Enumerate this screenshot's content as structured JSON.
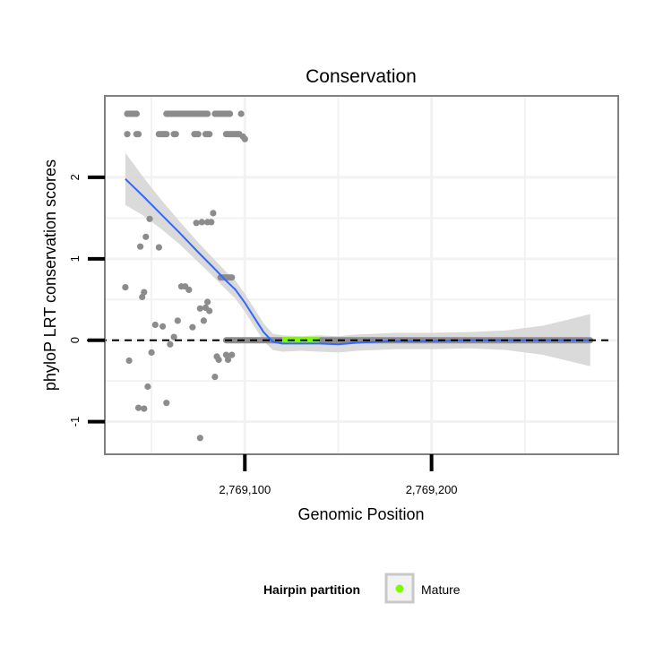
{
  "chart_data": {
    "type": "scatter",
    "title": "Conservation",
    "xlabel": "Genomic Position",
    "ylabel": "phyloP LRT conservation scores",
    "xlim": [
      2769025,
      2769300
    ],
    "ylim": [
      -1.4,
      3.0
    ],
    "x_ticks": [
      {
        "value": 2769100,
        "label": "2,769,100"
      },
      {
        "value": 2769200,
        "label": "2,769,200"
      }
    ],
    "y_ticks": [
      {
        "value": -1,
        "label": "-1"
      },
      {
        "value": 0,
        "label": "0"
      },
      {
        "value": 1,
        "label": "1"
      },
      {
        "value": 2,
        "label": "2"
      }
    ],
    "x_minor_grid": [
      2769050,
      2769150,
      2769250
    ],
    "reference_line": {
      "y": 0,
      "style": "dashed"
    },
    "colors": {
      "point": "#8c8c8c",
      "smooth": "#3366ff",
      "ribbon": "#d6d6d6",
      "mature": "#7cfc00",
      "panel_border": "#7f7f7f",
      "grid": "#f2f2f2"
    },
    "series": [
      {
        "name": "Scores",
        "points": [
          [
            2769037,
            2.78
          ],
          [
            2769038,
            2.78
          ],
          [
            2769039,
            2.78
          ],
          [
            2769040,
            2.78
          ],
          [
            2769041,
            2.78
          ],
          [
            2769042,
            2.78
          ],
          [
            2769037,
            2.53
          ],
          [
            2769042,
            2.53
          ],
          [
            2769043,
            2.53
          ],
          [
            2769058,
            2.78
          ],
          [
            2769059,
            2.78
          ],
          [
            2769060,
            2.78
          ],
          [
            2769061,
            2.78
          ],
          [
            2769062,
            2.78
          ],
          [
            2769063,
            2.78
          ],
          [
            2769064,
            2.78
          ],
          [
            2769065,
            2.78
          ],
          [
            2769066,
            2.78
          ],
          [
            2769067,
            2.78
          ],
          [
            2769068,
            2.78
          ],
          [
            2769069,
            2.78
          ],
          [
            2769070,
            2.78
          ],
          [
            2769071,
            2.78
          ],
          [
            2769072,
            2.78
          ],
          [
            2769073,
            2.78
          ],
          [
            2769074,
            2.78
          ],
          [
            2769075,
            2.78
          ],
          [
            2769076,
            2.78
          ],
          [
            2769077,
            2.78
          ],
          [
            2769078,
            2.78
          ],
          [
            2769079,
            2.78
          ],
          [
            2769080,
            2.78
          ],
          [
            2769084,
            2.78
          ],
          [
            2769085,
            2.78
          ],
          [
            2769086,
            2.78
          ],
          [
            2769087,
            2.78
          ],
          [
            2769088,
            2.78
          ],
          [
            2769089,
            2.78
          ],
          [
            2769090,
            2.78
          ],
          [
            2769091,
            2.78
          ],
          [
            2769092,
            2.78
          ],
          [
            2769098,
            2.78
          ],
          [
            2769054,
            2.53
          ],
          [
            2769055,
            2.53
          ],
          [
            2769056,
            2.53
          ],
          [
            2769057,
            2.53
          ],
          [
            2769058,
            2.53
          ],
          [
            2769062,
            2.53
          ],
          [
            2769063,
            2.53
          ],
          [
            2769073,
            2.53
          ],
          [
            2769074,
            2.53
          ],
          [
            2769075,
            2.53
          ],
          [
            2769079,
            2.53
          ],
          [
            2769080,
            2.53
          ],
          [
            2769081,
            2.53
          ],
          [
            2769090,
            2.53
          ],
          [
            2769091,
            2.53
          ],
          [
            2769092,
            2.53
          ],
          [
            2769093,
            2.53
          ],
          [
            2769094,
            2.53
          ],
          [
            2769095,
            2.53
          ],
          [
            2769096,
            2.53
          ],
          [
            2769097,
            2.53
          ],
          [
            2769099,
            2.5
          ],
          [
            2769100,
            2.47
          ],
          [
            2769036,
            0.65
          ],
          [
            2769038,
            -0.25
          ],
          [
            2769043,
            -0.83
          ],
          [
            2769044,
            1.15
          ],
          [
            2769045,
            0.53
          ],
          [
            2769046,
            0.59
          ],
          [
            2769046,
            -0.84
          ],
          [
            2769047,
            1.27
          ],
          [
            2769048,
            -0.57
          ],
          [
            2769049,
            1.49
          ],
          [
            2769050,
            -0.15
          ],
          [
            2769052,
            0.19
          ],
          [
            2769054,
            1.14
          ],
          [
            2769056,
            0.17
          ],
          [
            2769058,
            -0.77
          ],
          [
            2769060,
            -0.05
          ],
          [
            2769062,
            0.04
          ],
          [
            2769064,
            0.24
          ],
          [
            2769066,
            0.66
          ],
          [
            2769068,
            0.66
          ],
          [
            2769070,
            0.62
          ],
          [
            2769072,
            0.16
          ],
          [
            2769074,
            1.44
          ],
          [
            2769076,
            0.39
          ],
          [
            2769076,
            -1.2
          ],
          [
            2769077,
            1.45
          ],
          [
            2769078,
            0.24
          ],
          [
            2769080,
            1.45
          ],
          [
            2769082,
            1.45
          ],
          [
            2769083,
            1.56
          ],
          [
            2769084,
            -0.45
          ],
          [
            2769085,
            -0.2
          ],
          [
            2769086,
            -0.24
          ],
          [
            2769087,
            0.77
          ],
          [
            2769088,
            0.77
          ],
          [
            2769089,
            0.77
          ],
          [
            2769090,
            0.77
          ],
          [
            2769091,
            0.77
          ],
          [
            2769092,
            0.77
          ],
          [
            2769093,
            0.77
          ],
          [
            2769090,
            -0.18
          ],
          [
            2769091,
            -0.24
          ],
          [
            2769093,
            -0.18
          ],
          [
            2769079,
            0.4
          ],
          [
            2769080,
            0.47
          ],
          [
            2769081,
            0.36
          ]
        ]
      },
      {
        "name": "Smooth",
        "x": [
          2769036,
          2769045,
          2769055,
          2769065,
          2769075,
          2769085,
          2769090,
          2769095,
          2769100,
          2769105,
          2769110,
          2769115,
          2769120,
          2769130,
          2769140,
          2769150,
          2769160,
          2769170,
          2769180,
          2769200,
          2769220,
          2769240,
          2769260,
          2769285
        ],
        "y": [
          1.98,
          1.78,
          1.55,
          1.32,
          1.08,
          0.85,
          0.73,
          0.62,
          0.46,
          0.28,
          0.1,
          -0.02,
          -0.04,
          -0.04,
          -0.04,
          -0.05,
          -0.03,
          -0.02,
          -0.01,
          -0.01,
          0.0,
          0.0,
          0.0,
          0.0
        ],
        "se": [
          0.32,
          0.24,
          0.18,
          0.14,
          0.12,
          0.11,
          0.11,
          0.11,
          0.11,
          0.11,
          0.11,
          0.1,
          0.1,
          0.09,
          0.1,
          0.1,
          0.1,
          0.1,
          0.1,
          0.1,
          0.1,
          0.12,
          0.18,
          0.32
        ]
      }
    ],
    "mature_region": [
      2769120,
      2769140
    ],
    "partition_bar": [
      2769090,
      2769285
    ]
  },
  "legend": {
    "title": "Hairpin partition",
    "items": [
      {
        "label": "Mature"
      }
    ]
  }
}
